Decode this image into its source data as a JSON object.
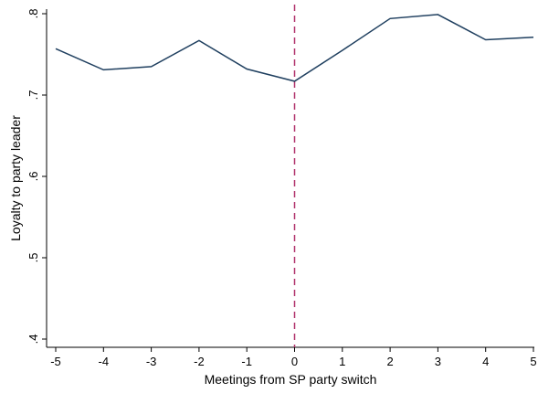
{
  "chart_data": {
    "type": "line",
    "title": "",
    "xlabel": "Meetings from SP party switch",
    "ylabel": "Loyalty to party leader",
    "x": [
      -5,
      -4,
      -3,
      -2,
      -1,
      0,
      1,
      2,
      3,
      4,
      5
    ],
    "series": [
      {
        "values": [
          0.757,
          0.731,
          0.735,
          0.767,
          0.732,
          0.717,
          0.755,
          0.794,
          0.799,
          0.768,
          0.771
        ]
      }
    ],
    "xlim": [
      -5,
      5
    ],
    "ylim": [
      0.4,
      0.8
    ],
    "xticks": [
      -5,
      -4,
      -3,
      -2,
      -1,
      0,
      1,
      2,
      3,
      4,
      5
    ],
    "xtick_labels": [
      "-5",
      "-4",
      "-3",
      "-2",
      "-1",
      "0",
      "1",
      "2",
      "3",
      "4",
      "5"
    ],
    "yticks": [
      0.4,
      0.5,
      0.6,
      0.7,
      0.8
    ],
    "ytick_labels": [
      ".4",
      ".5",
      ".6",
      ".7",
      ".8"
    ],
    "reference_line": {
      "axis": "x",
      "value": 0,
      "style": "dashed"
    },
    "grid": false,
    "line_color": "#1f3f5f",
    "reference_line_color": "#b0306a"
  }
}
